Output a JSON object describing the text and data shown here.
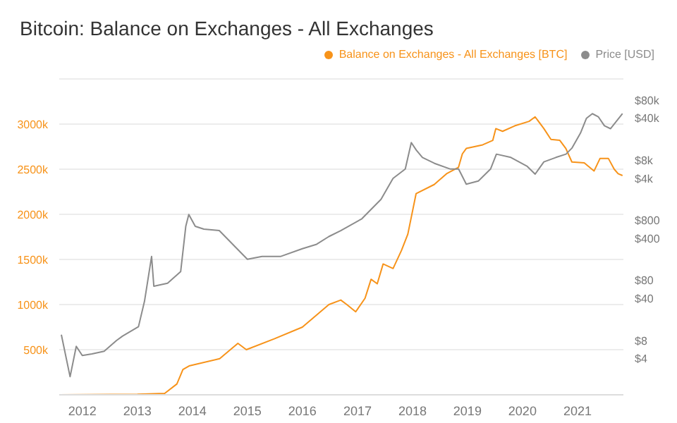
{
  "chart_data": {
    "type": "line",
    "title": "Bitcoin: Balance on Exchanges - All Exchanges",
    "xlim": [
      "2011-08-01",
      "2021-11-01"
    ],
    "xticks": [
      "2012",
      "2013",
      "2014",
      "2015",
      "2016",
      "2017",
      "2018",
      "2019",
      "2020",
      "2021"
    ],
    "ylim": [
      0,
      3500000
    ],
    "yticks": [
      {
        "value": 500000,
        "label": "500k"
      },
      {
        "value": 1000000,
        "label": "1000k"
      },
      {
        "value": 1500000,
        "label": "1500k"
      },
      {
        "value": 2000000,
        "label": "2000k"
      },
      {
        "value": 2500000,
        "label": "2500k"
      },
      {
        "value": 3000000,
        "label": "3000k"
      }
    ],
    "y2lim": [
      1,
      180000
    ],
    "y2ticks": [
      {
        "value": 4,
        "label": "$4"
      },
      {
        "value": 8,
        "label": "$8"
      },
      {
        "value": 40,
        "label": "$40"
      },
      {
        "value": 80,
        "label": "$80"
      },
      {
        "value": 400,
        "label": "$400"
      },
      {
        "value": 800,
        "label": "$800"
      },
      {
        "value": 4000,
        "label": "$4k"
      },
      {
        "value": 8000,
        "label": "$8k"
      },
      {
        "value": 40000,
        "label": "$40k"
      },
      {
        "value": 80000,
        "label": "$80k"
      }
    ],
    "log": "y2",
    "grid": "y",
    "legend": "top right",
    "marker": "none",
    "line_style": "solid",
    "series": [
      {
        "name": "Balance on Exchanges - All Exchanges [BTC]",
        "color": "#f7931a",
        "x": [
          "2011-08",
          "2013-01",
          "2013-07",
          "2013-09-20",
          "2013-10-30",
          "2013-12-10",
          "2014-07",
          "2014-10-30",
          "2014-12-25",
          "2015-06-28",
          "2016-01",
          "2016-06-25",
          "2016-09-12",
          "2016-10-22",
          "2016-12-20",
          "2017-02-20",
          "2017-04-01",
          "2017-05-12",
          "2017-06-20",
          "2017-08-25",
          "2017-10-20",
          "2017-12-01",
          "2018-01-25",
          "2018-05-25",
          "2018-08-15",
          "2018-11-02",
          "2018-11-28",
          "2018-12-24",
          "2019-04-12",
          "2019-06-18",
          "2019-07-08",
          "2019-08-22",
          "2019-11-10",
          "2020-02-14",
          "2020-03-25",
          "2020-05-22",
          "2020-07-08",
          "2020-09-05",
          "2020-10-15",
          "2020-11-24",
          "2021-02-14",
          "2021-04-20",
          "2021-05-30",
          "2021-07-24",
          "2021-09-01",
          "2021-09-27",
          "2021-10-26"
        ],
        "values": [
          0,
          5000,
          15000,
          120000,
          280000,
          320000,
          400000,
          570000,
          500000,
          620000,
          750000,
          1000000,
          1050000,
          1000000,
          920000,
          1070000,
          1280000,
          1230000,
          1450000,
          1400000,
          1600000,
          1780000,
          2230000,
          2330000,
          2450000,
          2520000,
          2670000,
          2730000,
          2770000,
          2820000,
          2950000,
          2920000,
          2980000,
          3030000,
          3080000,
          2950000,
          2830000,
          2820000,
          2730000,
          2580000,
          2570000,
          2480000,
          2620000,
          2620000,
          2500000,
          2450000,
          2430000
        ]
      },
      {
        "name": "Price [USD]",
        "color": "#8c8c8c",
        "axis": "y2",
        "x": [
          "2011-08-15",
          "2011-10-12",
          "2011-11-22",
          "2012-01-01",
          "2012-03-05",
          "2012-05-25",
          "2012-08-15",
          "2012-09-25",
          "2013-01-08",
          "2013-02-17",
          "2013-04-05",
          "2013-04-20",
          "2013-07-20",
          "2013-10-15",
          "2013-11-18",
          "2013-12-08",
          "2014-01-20",
          "2014-03-18",
          "2014-06-28",
          "2015-01-01",
          "2015-04-08",
          "2015-08-08",
          "2016-01-01",
          "2016-04-05",
          "2016-06-25",
          "2016-09-12",
          "2017-01-30",
          "2017-06-06",
          "2017-08-25",
          "2017-11-14",
          "2017-12-24",
          "2018-01-26",
          "2018-03-08",
          "2018-05-27",
          "2018-09-10",
          "2018-11-03",
          "2018-12-24",
          "2019-03-14",
          "2019-06-03",
          "2019-07-12",
          "2019-10-16",
          "2020-01-30",
          "2020-03-25",
          "2020-05-22",
          "2020-08-10",
          "2020-10-16",
          "2020-11-24",
          "2021-01-20",
          "2021-03-01",
          "2021-04-09",
          "2021-05-18",
          "2021-06-28",
          "2021-08-07",
          "2021-09-16",
          "2021-10-26"
        ],
        "values": [
          10,
          2,
          6.4,
          4.5,
          4.8,
          5.3,
          8,
          9.5,
          13.6,
          36,
          200,
          64,
          72,
          112,
          635,
          1000,
          635,
          570,
          540,
          180,
          200,
          200,
          270,
          320,
          430,
          540,
          850,
          1790,
          4000,
          5700,
          15700,
          11800,
          8900,
          7100,
          5700,
          5700,
          3200,
          3600,
          5700,
          10100,
          8900,
          6400,
          4700,
          7500,
          8900,
          10100,
          12700,
          22600,
          40000,
          47600,
          42400,
          30000,
          26800,
          35800,
          47600
        ]
      }
    ]
  }
}
